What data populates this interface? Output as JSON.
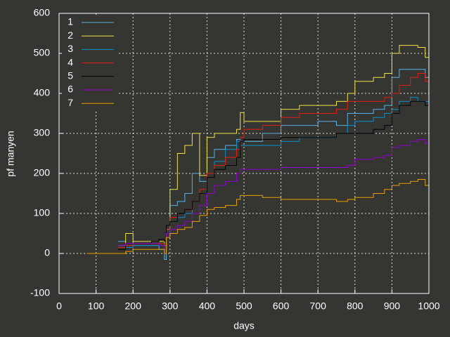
{
  "chart_data": {
    "type": "line",
    "line_style": "steps",
    "x_label": "days",
    "y_label": "pf manyen",
    "xlim": [
      0,
      1000
    ],
    "ylim": [
      -100,
      600
    ],
    "xticks": [
      0,
      100,
      200,
      300,
      400,
      500,
      600,
      700,
      800,
      900,
      1000
    ],
    "yticks": [
      -100,
      0,
      100,
      200,
      300,
      400,
      500,
      600
    ],
    "grid": true,
    "legend": "top-left",
    "x": [
      75,
      150,
      160,
      180,
      200,
      250,
      270,
      285,
      290,
      300,
      320,
      340,
      360,
      380,
      400,
      420,
      450,
      480,
      490,
      500,
      550,
      600,
      650,
      700,
      750,
      780,
      800,
      850,
      880,
      900,
      920,
      950,
      970,
      990,
      1000
    ],
    "series": [
      {
        "name": "1",
        "color": "#56b4e9",
        "values": [
          null,
          null,
          30,
          20,
          20,
          20,
          10,
          -15,
          60,
          120,
          130,
          150,
          200,
          180,
          240,
          260,
          270,
          285,
          280,
          280,
          300,
          320,
          320,
          330,
          320,
          350,
          350,
          360,
          370,
          440,
          460,
          460,
          460,
          440,
          445
        ]
      },
      {
        "name": "2",
        "color": "#f0e442",
        "values": [
          null,
          null,
          20,
          50,
          30,
          30,
          30,
          20,
          60,
          160,
          250,
          270,
          300,
          195,
          290,
          300,
          300,
          310,
          352,
          330,
          330,
          360,
          370,
          370,
          380,
          400,
          430,
          440,
          450,
          500,
          520,
          520,
          515,
          490,
          500
        ]
      },
      {
        "name": "3",
        "color": "#0a90d0",
        "values": [
          null,
          null,
          20,
          15,
          20,
          20,
          20,
          10,
          50,
          80,
          90,
          100,
          130,
          150,
          200,
          230,
          260,
          280,
          270,
          270,
          270,
          280,
          290,
          290,
          300,
          320,
          330,
          340,
          350,
          360,
          380,
          390,
          380,
          380,
          370
        ]
      },
      {
        "name": "4",
        "color": "#e51e10",
        "values": [
          null,
          null,
          15,
          20,
          25,
          25,
          25,
          20,
          60,
          90,
          100,
          110,
          130,
          160,
          200,
          220,
          240,
          260,
          290,
          310,
          320,
          340,
          350,
          350,
          360,
          380,
          380,
          380,
          390,
          400,
          420,
          440,
          450,
          430,
          430
        ]
      },
      {
        "name": "5",
        "color": "#000000",
        "values": [
          null,
          null,
          10,
          25,
          25,
          30,
          35,
          30,
          70,
          80,
          100,
          110,
          130,
          150,
          190,
          210,
          220,
          240,
          280,
          285,
          285,
          290,
          290,
          290,
          300,
          300,
          300,
          310,
          320,
          350,
          370,
          380,
          380,
          370,
          365
        ]
      },
      {
        "name": "6",
        "color": "#9400d3",
        "values": [
          null,
          null,
          20,
          25,
          25,
          25,
          20,
          10,
          50,
          60,
          70,
          80,
          100,
          120,
          150,
          170,
          180,
          200,
          210,
          210,
          210,
          215,
          215,
          215,
          215,
          220,
          235,
          240,
          245,
          265,
          270,
          280,
          285,
          275,
          275
        ]
      },
      {
        "name": "7",
        "color": "#e69f00",
        "values": [
          0,
          0,
          0,
          5,
          10,
          10,
          10,
          0,
          40,
          50,
          60,
          65,
          80,
          95,
          110,
          115,
          120,
          135,
          145,
          145,
          140,
          135,
          135,
          135,
          130,
          135,
          140,
          150,
          160,
          170,
          175,
          180,
          185,
          170,
          170
        ]
      }
    ]
  }
}
